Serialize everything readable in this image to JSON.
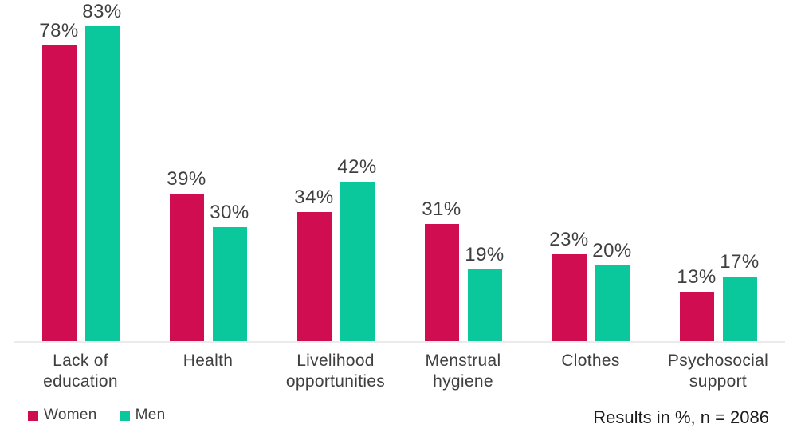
{
  "chart_data": {
    "type": "bar",
    "title": "",
    "categories": [
      "Lack of education",
      "Health",
      "Livelihood opportunities",
      "Menstrual hygiene",
      "Clothes",
      "Psychosocial support"
    ],
    "series": [
      {
        "name": "Women",
        "color": "#d00d50",
        "values": [
          78,
          39,
          34,
          31,
          23,
          13
        ]
      },
      {
        "name": "Men",
        "color": "#0bc89c",
        "values": [
          83,
          30,
          42,
          19,
          20,
          17
        ]
      }
    ],
    "value_suffix": "%",
    "xlabel": "",
    "ylabel": "",
    "ylim": [
      0,
      90
    ],
    "grid": false,
    "axis_line_color": "#ebebeb",
    "label_color": "#3f3f3f",
    "legend_position": "bottom-left",
    "note": "Results in %, n = 2086"
  }
}
